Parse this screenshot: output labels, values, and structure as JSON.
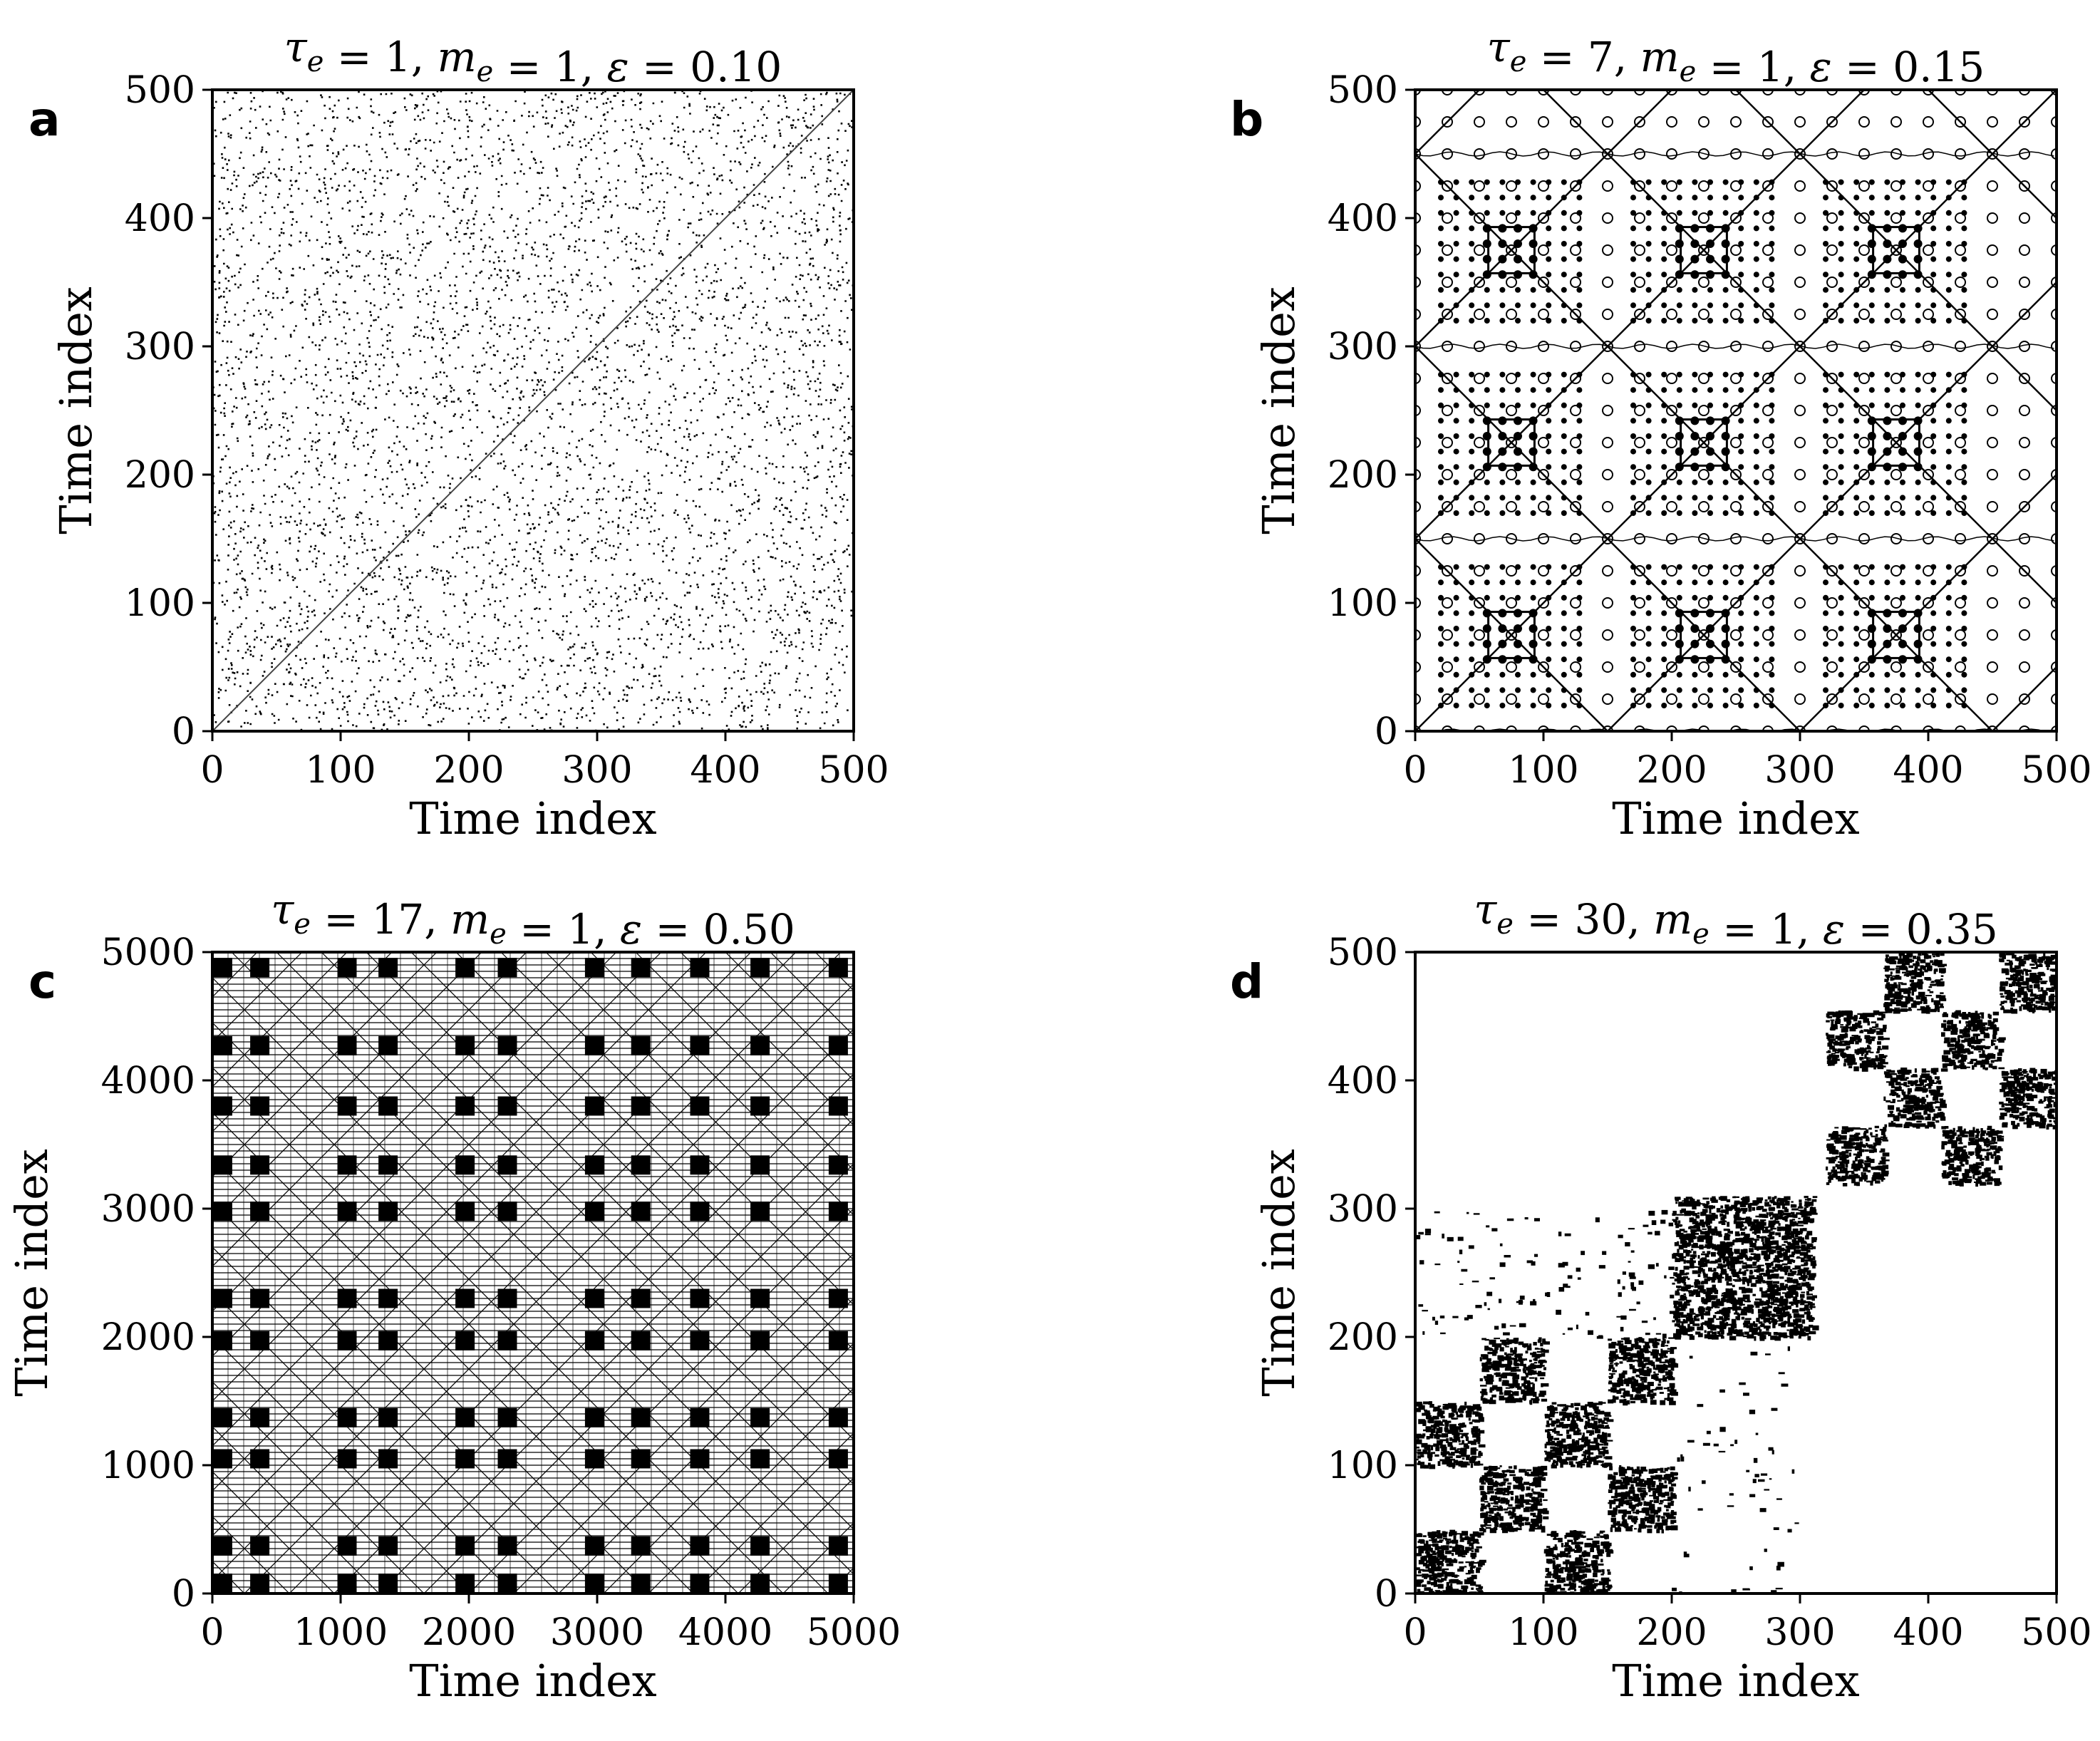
{
  "chart_data": [
    {
      "panel": "a",
      "type": "heatmap",
      "title_parts": {
        "tau_sub": "e",
        "tau_val": "1",
        "m_sub": "e",
        "m_val": "1",
        "eps_val": "0.10"
      },
      "xlabel": "Time index",
      "ylabel": "Time index",
      "xlim": [
        0,
        500
      ],
      "ylim": [
        0,
        500
      ],
      "xticks": [
        0,
        100,
        200,
        300,
        400,
        500
      ],
      "yticks": [
        0,
        100,
        200,
        300,
        400,
        500
      ],
      "pattern": "sparse-random-with-main-diagonal"
    },
    {
      "panel": "b",
      "type": "heatmap",
      "title_parts": {
        "tau_sub": "e",
        "tau_val": "7",
        "m_sub": "e",
        "m_val": "1",
        "eps_val": "0.15"
      },
      "xlabel": "Time index",
      "ylabel": "Time index",
      "xlim": [
        0,
        500
      ],
      "ylim": [
        0,
        500
      ],
      "xticks": [
        0,
        100,
        200,
        300,
        400,
        500
      ],
      "yticks": [
        0,
        100,
        200,
        300,
        400,
        500
      ],
      "pattern": "periodic-diagonal-lattice",
      "period": 150
    },
    {
      "panel": "c",
      "type": "heatmap",
      "title_parts": {
        "tau_sub": "e",
        "tau_val": "17",
        "m_sub": "e",
        "m_val": "1",
        "eps_val": "0.50"
      },
      "xlabel": "Time index",
      "ylabel": "Time index",
      "xlim": [
        0,
        5000
      ],
      "ylim": [
        0,
        5000
      ],
      "xticks": [
        0,
        1000,
        2000,
        3000,
        4000,
        5000
      ],
      "yticks": [
        0,
        1000,
        2000,
        3000,
        4000,
        5000
      ],
      "pattern": "dense-checkerboard-blocks",
      "block_centers": [
        80,
        370,
        1050,
        1370,
        1970,
        2300,
        2980,
        3340,
        3800,
        4270,
        4880
      ]
    },
    {
      "panel": "d",
      "type": "heatmap",
      "title_parts": {
        "tau_sub": "e",
        "tau_val": "30",
        "m_sub": "e",
        "m_val": "1",
        "eps_val": "0.35"
      },
      "xlabel": "Time index",
      "ylabel": "Time index",
      "xlim": [
        0,
        500
      ],
      "ylim": [
        0,
        500
      ],
      "xticks": [
        0,
        100,
        200,
        300,
        400,
        500
      ],
      "yticks": [
        0,
        100,
        200,
        300,
        400,
        500
      ],
      "pattern": "block-diagonal-regimes",
      "blocks": [
        [
          0,
          200
        ],
        [
          200,
          310
        ],
        [
          320,
          500
        ]
      ]
    }
  ]
}
